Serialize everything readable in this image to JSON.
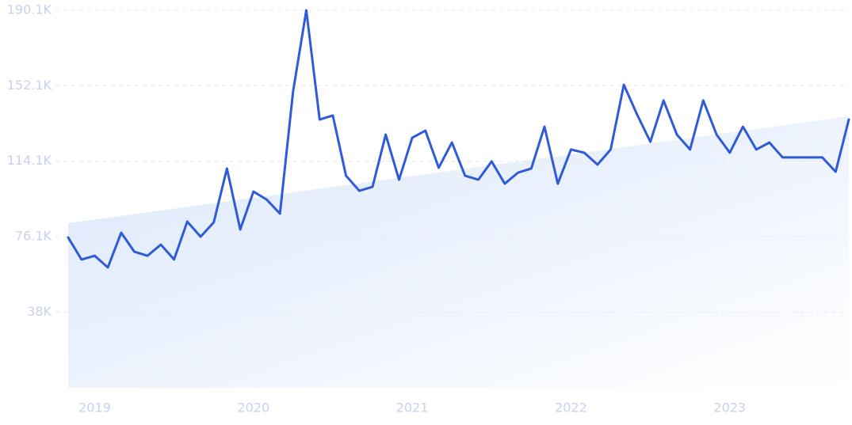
{
  "chart_data": {
    "type": "line",
    "x": [
      2018.833,
      2018.917,
      2019.0,
      2019.083,
      2019.167,
      2019.25,
      2019.333,
      2019.417,
      2019.5,
      2019.583,
      2019.667,
      2019.75,
      2019.833,
      2019.917,
      2020.0,
      2020.083,
      2020.167,
      2020.25,
      2020.333,
      2020.417,
      2020.5,
      2020.583,
      2020.667,
      2020.75,
      2020.833,
      2020.917,
      2021.0,
      2021.083,
      2021.167,
      2021.25,
      2021.333,
      2021.417,
      2021.5,
      2021.583,
      2021.667,
      2021.75,
      2021.833,
      2021.917,
      2022.0,
      2022.083,
      2022.167,
      2022.25,
      2022.333,
      2022.417,
      2022.5,
      2022.583,
      2022.667,
      2022.75,
      2022.833,
      2022.917,
      2023.0,
      2023.083,
      2023.167,
      2023.25,
      2023.333,
      2023.417,
      2023.5,
      2023.583,
      2023.667,
      2023.75
    ],
    "series": [
      {
        "color": "#2f5bd8",
        "values": [
          75700,
          64600,
          66500,
          60600,
          78100,
          68500,
          66500,
          72100,
          64600,
          83700,
          76100,
          83300,
          110400,
          79700,
          98800,
          94800,
          87700,
          149400,
          190100,
          135100,
          137100,
          106800,
          99200,
          101200,
          127500,
          104800,
          125900,
          129500,
          110800,
          123500,
          106800,
          104800,
          114000,
          102800,
          108400,
          110400,
          131500,
          102800,
          120000,
          118400,
          112400,
          120000,
          152600,
          137500,
          123900,
          144700,
          127500,
          120000,
          144700,
          127500,
          118400,
          131500,
          120000,
          123500,
          116000,
          116000,
          116000,
          116000,
          108800,
          135100
        ]
      }
    ],
    "trend": {
      "x": [
        2018.833,
        2023.75
      ],
      "values": [
        82900,
        136700
      ],
      "color": "#dbe7fb"
    },
    "xlim": [
      2018.833,
      2023.75
    ],
    "xticks": [
      2019,
      2020,
      2021,
      2022,
      2023
    ],
    "ylim": [
      0,
      190100
    ],
    "yticks": [
      {
        "value": 38000,
        "label": "38K"
      },
      {
        "value": 76100,
        "label": "76.1K"
      },
      {
        "value": 114100,
        "label": "114.1K"
      },
      {
        "value": 152100,
        "label": "152.1K"
      },
      {
        "value": 190100,
        "label": "190.1K"
      }
    ],
    "grid": true
  }
}
